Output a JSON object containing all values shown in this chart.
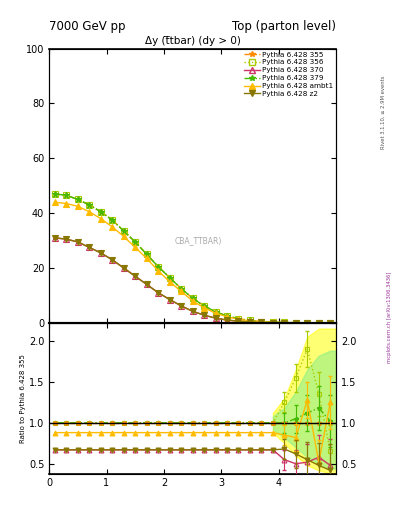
{
  "title_left": "7000 GeV pp",
  "title_right": "Top (parton level)",
  "plot_title": "Δy (t̅tbar) (dy > 0)",
  "ylabel_ratio": "Ratio to Pythia 6.428 355",
  "rivet_text": "Rivet 3.1.10, ≥ 2.9M events",
  "arxiv_text": "mcplots.cern.ch [arXiv:1306.3436]",
  "watermark": "CBA_TTBAR)",
  "series": [
    {
      "label": "Pythia 6.428 355",
      "color": "#ff8c00",
      "marker": "*",
      "linestyle": "--",
      "open": false
    },
    {
      "label": "Pythia 6.428 356",
      "color": "#aacc00",
      "marker": "s",
      "linestyle": ":",
      "open": true
    },
    {
      "label": "Pythia 6.428 370",
      "color": "#cc3366",
      "marker": "^",
      "linestyle": "-",
      "open": true
    },
    {
      "label": "Pythia 6.428 379",
      "color": "#44bb00",
      "marker": "*",
      "linestyle": "-.",
      "open": false
    },
    {
      "label": "Pythia 6.428 ambt1",
      "color": "#ffbb00",
      "marker": "^",
      "linestyle": "-",
      "open": false
    },
    {
      "label": "Pythia 6.428 z2",
      "color": "#887700",
      "marker": "v",
      "linestyle": "-",
      "open": false
    }
  ],
  "x": [
    0.1,
    0.3,
    0.5,
    0.7,
    0.9,
    1.1,
    1.3,
    1.5,
    1.7,
    1.9,
    2.1,
    2.3,
    2.5,
    2.7,
    2.9,
    3.1,
    3.3,
    3.5,
    3.7,
    3.9,
    4.1,
    4.3,
    4.5,
    4.7,
    4.9
  ],
  "main_355": [
    47.0,
    46.5,
    45.0,
    43.0,
    40.5,
    37.5,
    33.5,
    29.5,
    25.0,
    20.5,
    16.5,
    12.5,
    9.0,
    6.2,
    4.0,
    2.5,
    1.5,
    0.85,
    0.45,
    0.22,
    0.1,
    0.05,
    0.025,
    0.01,
    0.005
  ],
  "main_356": [
    47.0,
    46.5,
    45.0,
    43.0,
    40.5,
    37.5,
    33.5,
    29.5,
    25.0,
    20.5,
    16.5,
    12.5,
    9.0,
    6.2,
    4.0,
    2.5,
    1.5,
    0.85,
    0.45,
    0.22,
    0.13,
    0.07,
    0.04,
    0.02,
    0.01
  ],
  "main_370": [
    31.0,
    30.5,
    29.5,
    27.5,
    25.5,
    23.0,
    20.0,
    17.0,
    14.0,
    11.0,
    8.5,
    6.2,
    4.2,
    2.8,
    1.7,
    1.0,
    0.58,
    0.32,
    0.17,
    0.08,
    0.04,
    0.02,
    0.01,
    0.005,
    0.002
  ],
  "main_379": [
    47.0,
    46.5,
    45.0,
    43.0,
    40.5,
    37.5,
    33.5,
    29.5,
    25.0,
    20.5,
    16.5,
    12.5,
    9.0,
    6.2,
    4.0,
    2.5,
    1.5,
    0.85,
    0.45,
    0.22,
    0.1,
    0.05,
    0.025,
    0.01,
    0.005
  ],
  "main_ambt1": [
    44.0,
    43.5,
    42.5,
    40.5,
    38.0,
    35.0,
    31.5,
    27.5,
    23.5,
    19.0,
    15.0,
    11.5,
    8.0,
    5.5,
    3.5,
    2.2,
    1.3,
    0.72,
    0.38,
    0.18,
    0.09,
    0.045,
    0.022,
    0.01,
    0.004
  ],
  "main_z2": [
    31.0,
    30.5,
    29.5,
    27.5,
    25.5,
    23.0,
    20.0,
    17.0,
    14.0,
    11.0,
    8.5,
    6.2,
    4.2,
    2.8,
    1.7,
    1.0,
    0.58,
    0.32,
    0.17,
    0.08,
    0.04,
    0.02,
    0.01,
    0.005,
    0.002
  ],
  "ratio_356": [
    1.0,
    1.0,
    1.0,
    1.0,
    1.0,
    1.0,
    1.0,
    1.0,
    1.0,
    1.0,
    1.0,
    1.0,
    1.0,
    1.0,
    1.0,
    1.0,
    1.0,
    1.0,
    1.0,
    1.0,
    1.25,
    1.55,
    1.9,
    1.35,
    0.65
  ],
  "ratio_370": [
    0.67,
    0.67,
    0.67,
    0.67,
    0.67,
    0.67,
    0.67,
    0.67,
    0.67,
    0.67,
    0.67,
    0.67,
    0.67,
    0.67,
    0.67,
    0.67,
    0.67,
    0.67,
    0.67,
    0.67,
    0.55,
    0.5,
    0.52,
    0.58,
    0.48
  ],
  "ratio_379": [
    1.0,
    1.0,
    1.0,
    1.0,
    1.0,
    1.0,
    1.0,
    1.0,
    1.0,
    1.0,
    1.0,
    1.0,
    1.0,
    1.0,
    1.0,
    1.0,
    1.0,
    1.0,
    1.0,
    1.0,
    1.0,
    1.05,
    1.12,
    1.18,
    1.02
  ],
  "ratio_ambt1": [
    0.88,
    0.88,
    0.88,
    0.88,
    0.88,
    0.88,
    0.88,
    0.88,
    0.88,
    0.88,
    0.88,
    0.88,
    0.88,
    0.88,
    0.88,
    0.88,
    0.88,
    0.88,
    0.88,
    0.88,
    0.85,
    0.82,
    1.28,
    0.52,
    1.25
  ],
  "ratio_z2": [
    0.67,
    0.67,
    0.67,
    0.67,
    0.67,
    0.67,
    0.67,
    0.67,
    0.67,
    0.67,
    0.67,
    0.67,
    0.67,
    0.67,
    0.67,
    0.67,
    0.67,
    0.67,
    0.67,
    0.67,
    0.68,
    0.62,
    0.55,
    0.48,
    0.42
  ],
  "band_yellow_x": [
    3.9,
    4.1,
    4.3,
    4.5,
    4.7,
    4.9,
    5.0
  ],
  "band_yellow_lo": [
    0.88,
    0.75,
    0.6,
    0.48,
    0.42,
    0.38,
    0.38
  ],
  "band_yellow_hi": [
    1.12,
    1.3,
    1.65,
    2.05,
    2.15,
    2.15,
    2.15
  ],
  "band_green_x": [
    3.9,
    4.1,
    4.3,
    4.5,
    4.7,
    4.9,
    5.0
  ],
  "band_green_lo": [
    0.92,
    0.82,
    0.7,
    0.58,
    0.5,
    0.44,
    0.44
  ],
  "band_green_hi": [
    1.08,
    1.18,
    1.38,
    1.65,
    1.82,
    1.88,
    1.88
  ],
  "ylim_main": [
    0,
    100
  ],
  "ylim_ratio": [
    0.38,
    2.22
  ],
  "xlim": [
    0,
    5.0
  ],
  "yticks_main": [
    0,
    20,
    40,
    60,
    80,
    100
  ],
  "yticks_ratio": [
    0.5,
    1.0,
    1.5,
    2.0
  ],
  "xticks": [
    0,
    1,
    2,
    3,
    4
  ]
}
